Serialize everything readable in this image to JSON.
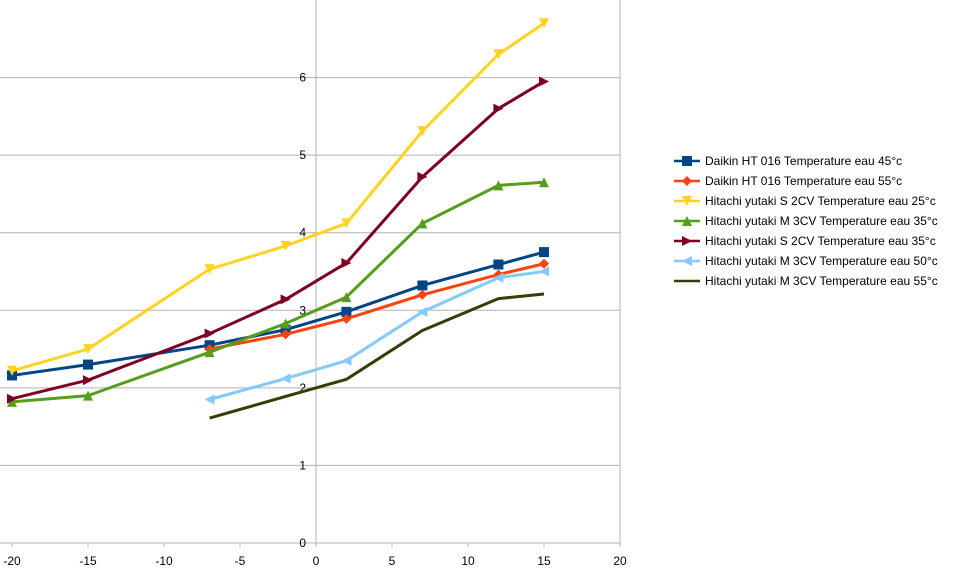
{
  "chart_data": {
    "type": "line",
    "title": "",
    "xlabel": "",
    "ylabel": "",
    "xlim": [
      -20,
      20
    ],
    "ylim": [
      0,
      7
    ],
    "x_ticks": [
      "-20",
      "-15",
      "-10",
      "-5",
      "0",
      "5",
      "10",
      "15",
      "20"
    ],
    "y_ticks": [
      "0",
      "1",
      "2",
      "3",
      "4",
      "5",
      "6"
    ],
    "grid": "horizontal",
    "legend_position": "right",
    "series": [
      {
        "name": "Daikin HT 016 Temperature eau 45°c",
        "color": "#004586",
        "marker": "square",
        "x": [
          -20,
          -15,
          -7,
          -2,
          2,
          7,
          12,
          15
        ],
        "y": [
          2.16,
          2.3,
          2.55,
          2.75,
          2.98,
          3.32,
          3.59,
          3.75
        ]
      },
      {
        "name": "Daikin HT 016 Temperature eau 55°c",
        "color": "#ff420e",
        "marker": "diamond",
        "x": [
          -7,
          -2,
          2,
          7,
          12,
          15
        ],
        "y": [
          2.5,
          2.69,
          2.89,
          3.2,
          3.46,
          3.6
        ]
      },
      {
        "name": "Hitachi yutaki S 2CV Temperature eau 25°c",
        "color": "#ffd320",
        "marker": "triangle-down",
        "x": [
          -20,
          -15,
          -7,
          -2,
          2,
          7,
          12,
          15
        ],
        "y": [
          2.22,
          2.5,
          3.53,
          3.83,
          4.12,
          5.31,
          6.3,
          6.7
        ]
      },
      {
        "name": "Hitachi yutaki M 3CV Temperature eau 35°c",
        "color": "#579d1c",
        "marker": "triangle-up",
        "x": [
          -20,
          -15,
          -7,
          -2,
          2,
          7,
          12,
          15
        ],
        "y": [
          1.82,
          1.9,
          2.46,
          2.83,
          3.17,
          4.12,
          4.61,
          4.65
        ]
      },
      {
        "name": "Hitachi yutaki S 2CV Temperature eau 35°c",
        "color": "#7e0021",
        "marker": "triangle-right",
        "x": [
          -20,
          -15,
          -7,
          -2,
          2,
          7,
          12,
          15
        ],
        "y": [
          1.86,
          2.1,
          2.7,
          3.14,
          3.61,
          4.72,
          5.6,
          5.95
        ]
      },
      {
        "name": "Hitachi yutaki  M 3CV Temperature eau 50°c",
        "color": "#83caff",
        "marker": "triangle-left",
        "x": [
          -7,
          -2,
          2,
          7,
          12,
          15
        ],
        "y": [
          1.85,
          2.12,
          2.35,
          2.98,
          3.42,
          3.5
        ]
      },
      {
        "name": "Hitachi yutaki M 3CV Temperature eau 55°c",
        "color": "#314004",
        "marker": "bowtie",
        "x": [
          -7,
          -2,
          2,
          7,
          12,
          15
        ],
        "y": [
          1.61,
          1.89,
          2.11,
          2.74,
          3.15,
          3.21
        ]
      }
    ]
  }
}
